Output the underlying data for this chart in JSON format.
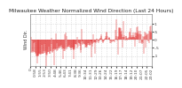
{
  "title": "Milwaukee Weather Normalized Wind Direction (Last 24 Hours)",
  "ylabel_left": "Wind Dir.",
  "line_color": "#dd0000",
  "background_color": "#ffffff",
  "plot_bg_color": "#ffffff",
  "grid_color": "#cccccc",
  "ylim": [
    -1.6,
    1.6
  ],
  "num_points": 288,
  "seed": 42,
  "title_fontsize": 4.2,
  "tick_fontsize": 3.2,
  "ylabel_fontsize": 3.5,
  "yticks": [
    -1.0,
    -0.5,
    0.0,
    0.5,
    1.0
  ],
  "ytick_labels": [
    "-1",
    "-.5",
    "0",
    ".5",
    "1"
  ],
  "linewidth": 0.5
}
